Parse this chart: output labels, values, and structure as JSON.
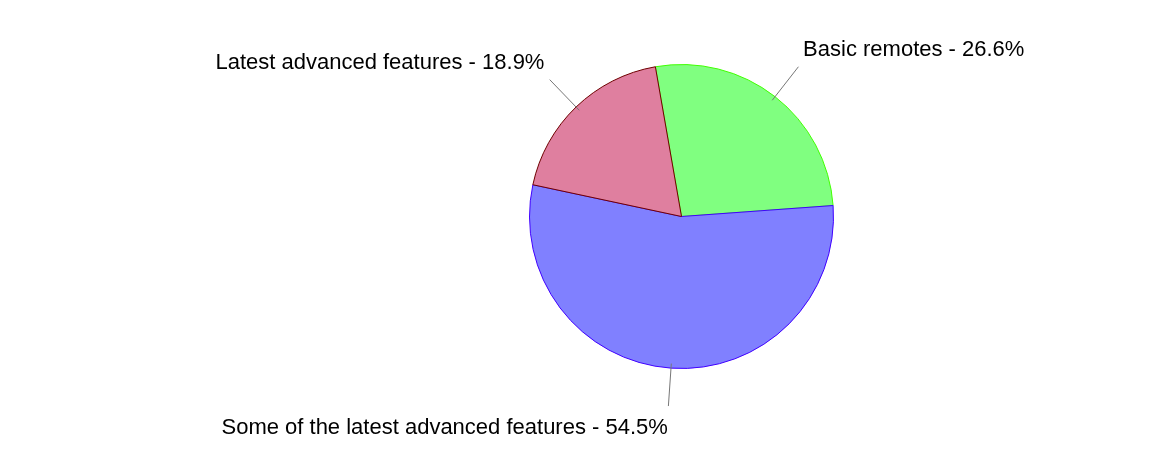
{
  "chart_data": {
    "type": "pie",
    "categories": [
      "Basic remotes ",
      "Some of the latest advanced features",
      "Latest advanced features"
    ],
    "values": [
      26.6,
      54.5,
      18.9
    ],
    "value_labels": [
      "26.6%",
      "54.5%",
      "18.9%"
    ],
    "colors": [
      "#80ff80",
      "#8080ff",
      "#df7f9f"
    ]
  }
}
